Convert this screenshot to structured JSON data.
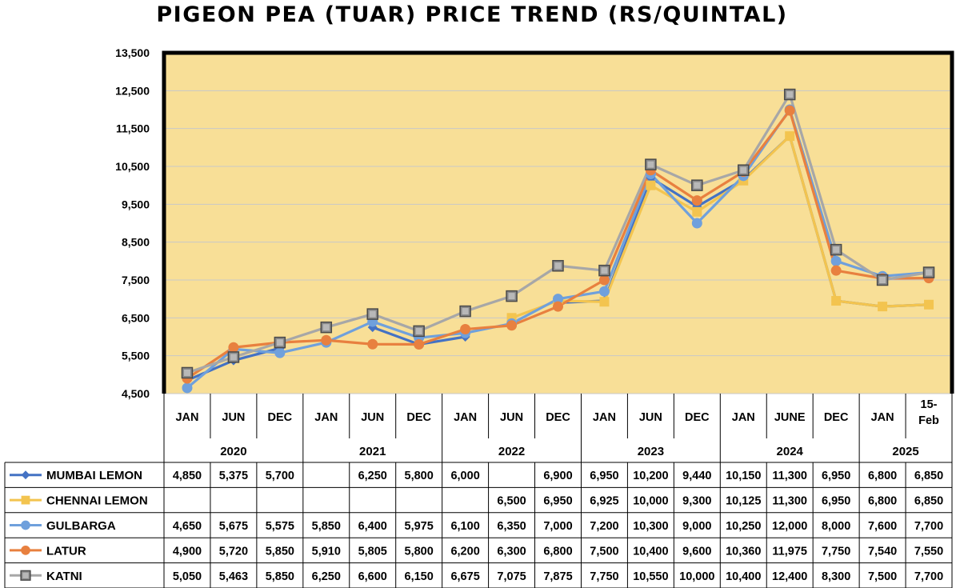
{
  "chart_data": {
    "type": "line",
    "title": "PIGEON PEA (TUAR)  PRICE TREND (RS/QUINTAL)",
    "ylim": [
      4500,
      13500
    ],
    "yticks": [
      4500,
      5500,
      6500,
      7500,
      8500,
      9500,
      10500,
      11500,
      12500,
      13500
    ],
    "ytick_labels": [
      "4,500",
      "5,500",
      "6,500",
      "7,500",
      "8,500",
      "9,500",
      "10,500",
      "11,500",
      "12,500",
      "13,500"
    ],
    "categories": [
      "JAN",
      "JUN",
      "DEC",
      "JAN",
      "JUN",
      "DEC",
      "JAN",
      "JUN",
      "DEC",
      "JAN",
      "JUN",
      "DEC",
      "JAN",
      "JUNE",
      "DEC",
      "JAN",
      "15-Feb"
    ],
    "year_groups": [
      {
        "label": "2020",
        "span": 3
      },
      {
        "label": "2021",
        "span": 3
      },
      {
        "label": "2022",
        "span": 3
      },
      {
        "label": "2023",
        "span": 3
      },
      {
        "label": "2024",
        "span": 3
      },
      {
        "label": "2025",
        "span": 2
      }
    ],
    "grid": true,
    "plot_background": "#f8df97",
    "series": [
      {
        "name": "MUMBAI LEMON",
        "color": "#4472c4",
        "marker": "diamond",
        "values": [
          4850,
          5375,
          5700,
          null,
          6250,
          5800,
          6000,
          null,
          6900,
          6950,
          10200,
          9440,
          10150,
          11300,
          6950,
          6800,
          6850
        ],
        "labels": [
          "4,850",
          "5,375",
          "5,700",
          "",
          "6,250",
          "5,800",
          "6,000",
          "",
          "6,900",
          "6,950",
          "10,200",
          "9,440",
          "10,150",
          "11,300",
          "6,950",
          "6,800",
          "6,850"
        ]
      },
      {
        "name": "CHENNAI LEMON",
        "color": "#f3c44f",
        "marker": "square",
        "values": [
          null,
          null,
          null,
          null,
          null,
          null,
          null,
          6500,
          6950,
          6925,
          10000,
          9300,
          10125,
          11300,
          6950,
          6800,
          6850
        ],
        "labels": [
          "",
          "",
          "",
          "",
          "",
          "",
          "",
          "6,500",
          "6,950",
          "6,925",
          "10,000",
          "9,300",
          "10,125",
          "11,300",
          "6,950",
          "6,800",
          "6,850"
        ]
      },
      {
        "name": "GULBARGA",
        "color": "#6fa0dc",
        "marker": "circle",
        "values": [
          4650,
          5675,
          5575,
          5850,
          6400,
          5975,
          6100,
          6350,
          7000,
          7200,
          10300,
          9000,
          10250,
          12000,
          8000,
          7600,
          7700
        ],
        "labels": [
          "4,650",
          "5,675",
          "5,575",
          "5,850",
          "6,400",
          "5,975",
          "6,100",
          "6,350",
          "7,000",
          "7,200",
          "10,300",
          "9,000",
          "10,250",
          "12,000",
          "8,000",
          "7,600",
          "7,700"
        ]
      },
      {
        "name": "LATUR",
        "color": "#e8803f",
        "marker": "circle",
        "values": [
          4900,
          5720,
          5850,
          5910,
          5805,
          5800,
          6200,
          6300,
          6800,
          7500,
          10400,
          9600,
          10360,
          11975,
          7750,
          7540,
          7550
        ],
        "labels": [
          "4,900",
          "5,720",
          "5,850",
          "5,910",
          "5,805",
          "5,800",
          "6,200",
          "6,300",
          "6,800",
          "7,500",
          "10,400",
          "9,600",
          "10,360",
          "11,975",
          "7,750",
          "7,540",
          "7,550"
        ]
      },
      {
        "name": "KATNI",
        "color": "#a7a7a7",
        "marker": "square-outlined",
        "values": [
          5050,
          5463,
          5850,
          6250,
          6600,
          6150,
          6675,
          7075,
          7875,
          7750,
          10550,
          10000,
          10400,
          12400,
          8300,
          7500,
          7700
        ],
        "labels": [
          "5,050",
          "5,463",
          "5,850",
          "6,250",
          "6,600",
          "6,150",
          "6,675",
          "7,075",
          "7,875",
          "7,750",
          "10,550",
          "10,000",
          "10,400",
          "12,400",
          "8,300",
          "7,500",
          "7,700"
        ]
      }
    ]
  }
}
